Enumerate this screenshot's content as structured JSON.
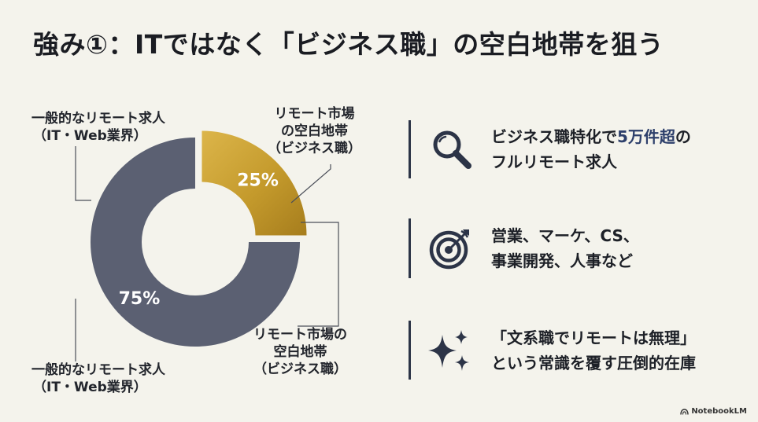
{
  "title": "強み①：ITではなく「ビジネス職」の空白地帯を狙う",
  "chart_data": {
    "type": "pie",
    "style": "donut",
    "slices": [
      {
        "name_lines": [
          "リモート市場",
          "の空白地帯",
          "（ビジネス職）"
        ],
        "value": 25,
        "value_label": "25%",
        "color": "#c49a2c",
        "exploded": true
      },
      {
        "name_lines": [
          "一般的なリモート求人",
          "（IT・Web業界）"
        ],
        "value": 75,
        "value_label": "75%",
        "color": "#5b6072"
      }
    ],
    "callouts": [
      {
        "lines": [
          "リモート市場",
          "の空白地帯",
          "（ビジネス職）"
        ]
      },
      {
        "lines": [
          "一般的なリモート求人",
          "（IT・Web業界）"
        ]
      },
      {
        "lines": [
          "リモート市場の",
          "空白地帯",
          "（ビジネス職）"
        ]
      },
      {
        "lines": [
          "一般的なリモート求人",
          "（IT・Web業界）"
        ]
      }
    ]
  },
  "features": [
    {
      "icon": "magnifier-icon",
      "line1_pre": "ビジネス職特化で",
      "line1_highlight": "5万件超",
      "line1_post": "の",
      "line2": "フルリモート求人"
    },
    {
      "icon": "target-icon",
      "line1": "営業、マーケ、CS、",
      "line2": "事業開発、人事など"
    },
    {
      "icon": "sparkle-icon",
      "line1": "「文系職でリモートは無理」",
      "line2": "という常識を覆す圧倒的在庫"
    }
  ],
  "colors": {
    "background": "#f4f3ec",
    "gold": "#c49a2c",
    "slate": "#5b6072",
    "navy": "#2c3447",
    "highlight": "#2d3f6b"
  },
  "brand": "NotebookLM"
}
